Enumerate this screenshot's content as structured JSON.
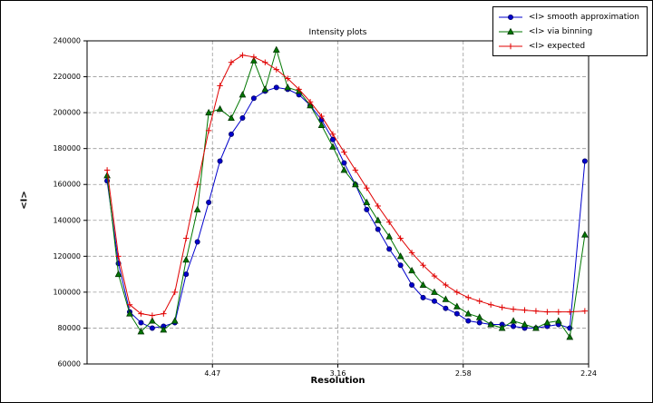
{
  "chart_data": {
    "type": "line",
    "title": "Intensity plots",
    "xlabel": "Resolution",
    "ylabel": "<I>",
    "x_axis_note": "axis linear in 1/resolution^2, tick labels show resolution in A",
    "xlim": [
      0,
      0.2
    ],
    "ylim": [
      60000,
      240000
    ],
    "grid": true,
    "legend_position": "upper right",
    "x_ticks": [
      {
        "value": 0.05,
        "label": "4.47"
      },
      {
        "value": 0.1,
        "label": "3.16"
      },
      {
        "value": 0.15,
        "label": "2.58"
      },
      {
        "value": 0.2,
        "label": "2.24"
      }
    ],
    "y_ticks": [
      60000,
      80000,
      100000,
      120000,
      140000,
      160000,
      180000,
      200000,
      220000,
      240000
    ],
    "series": [
      {
        "name": "<I> smooth approximation",
        "color": "#0000cc",
        "edge": "#000066",
        "marker": "circle",
        "x": [
          0.008,
          0.0125,
          0.017,
          0.0215,
          0.026,
          0.0305,
          0.035,
          0.0395,
          0.044,
          0.0485,
          0.053,
          0.0575,
          0.062,
          0.0665,
          0.071,
          0.0755,
          0.08,
          0.0845,
          0.089,
          0.0935,
          0.098,
          0.1025,
          0.107,
          0.1115,
          0.116,
          0.1205,
          0.125,
          0.1295,
          0.134,
          0.1385,
          0.143,
          0.1475,
          0.152,
          0.1565,
          0.161,
          0.1655,
          0.17,
          0.1745,
          0.179,
          0.1835,
          0.188,
          0.1925,
          0.1985
        ],
        "y": [
          162000,
          116000,
          89000,
          83000,
          80000,
          81000,
          83000,
          110000,
          128000,
          150000,
          173000,
          188000,
          197000,
          208000,
          212000,
          214000,
          213000,
          210000,
          204000,
          196000,
          185000,
          172000,
          160000,
          146000,
          135000,
          124000,
          115000,
          104000,
          97000,
          95000,
          91000,
          88000,
          84000,
          83000,
          82000,
          82000,
          81000,
          80000,
          80000,
          81000,
          82000,
          80000,
          173000
        ]
      },
      {
        "name": "<I> via binning",
        "color": "#007700",
        "edge": "#003300",
        "marker": "triangle",
        "x": [
          0.008,
          0.0125,
          0.017,
          0.0215,
          0.026,
          0.0305,
          0.035,
          0.0395,
          0.044,
          0.0485,
          0.053,
          0.0575,
          0.062,
          0.0665,
          0.071,
          0.0755,
          0.08,
          0.0845,
          0.089,
          0.0935,
          0.098,
          0.1025,
          0.107,
          0.1115,
          0.116,
          0.1205,
          0.125,
          0.1295,
          0.134,
          0.1385,
          0.143,
          0.1475,
          0.152,
          0.1565,
          0.161,
          0.1655,
          0.17,
          0.1745,
          0.179,
          0.1835,
          0.188,
          0.1925,
          0.1985
        ],
        "y": [
          165000,
          110000,
          88000,
          78000,
          84000,
          79000,
          84000,
          118000,
          146000,
          200000,
          202000,
          197000,
          210000,
          229000,
          213000,
          235000,
          214000,
          212000,
          204000,
          193000,
          181000,
          168000,
          160000,
          150000,
          140000,
          131000,
          120000,
          112000,
          104000,
          100000,
          96000,
          92000,
          88000,
          86000,
          82000,
          80000,
          84000,
          82000,
          80000,
          83000,
          84000,
          75000,
          132000
        ]
      },
      {
        "name": "<I> expected",
        "color": "#e00000",
        "edge": "#e00000",
        "marker": "plus",
        "x": [
          0.008,
          0.0125,
          0.017,
          0.0215,
          0.026,
          0.0305,
          0.035,
          0.0395,
          0.044,
          0.0485,
          0.053,
          0.0575,
          0.062,
          0.0665,
          0.071,
          0.0755,
          0.08,
          0.0845,
          0.089,
          0.0935,
          0.098,
          0.1025,
          0.107,
          0.1115,
          0.116,
          0.1205,
          0.125,
          0.1295,
          0.134,
          0.1385,
          0.143,
          0.1475,
          0.152,
          0.1565,
          0.161,
          0.1655,
          0.17,
          0.1745,
          0.179,
          0.1835,
          0.188,
          0.1925,
          0.1985
        ],
        "y": [
          168000,
          120000,
          93000,
          88000,
          87000,
          88000,
          100000,
          130000,
          160000,
          190000,
          215000,
          228000,
          232000,
          231000,
          228000,
          224000,
          219000,
          213000,
          206000,
          198000,
          188000,
          178000,
          168000,
          158000,
          148000,
          139000,
          130000,
          122000,
          115000,
          109000,
          104000,
          100000,
          97000,
          95000,
          93000,
          91500,
          90500,
          90000,
          89500,
          89000,
          89000,
          89000,
          89500
        ]
      }
    ]
  }
}
